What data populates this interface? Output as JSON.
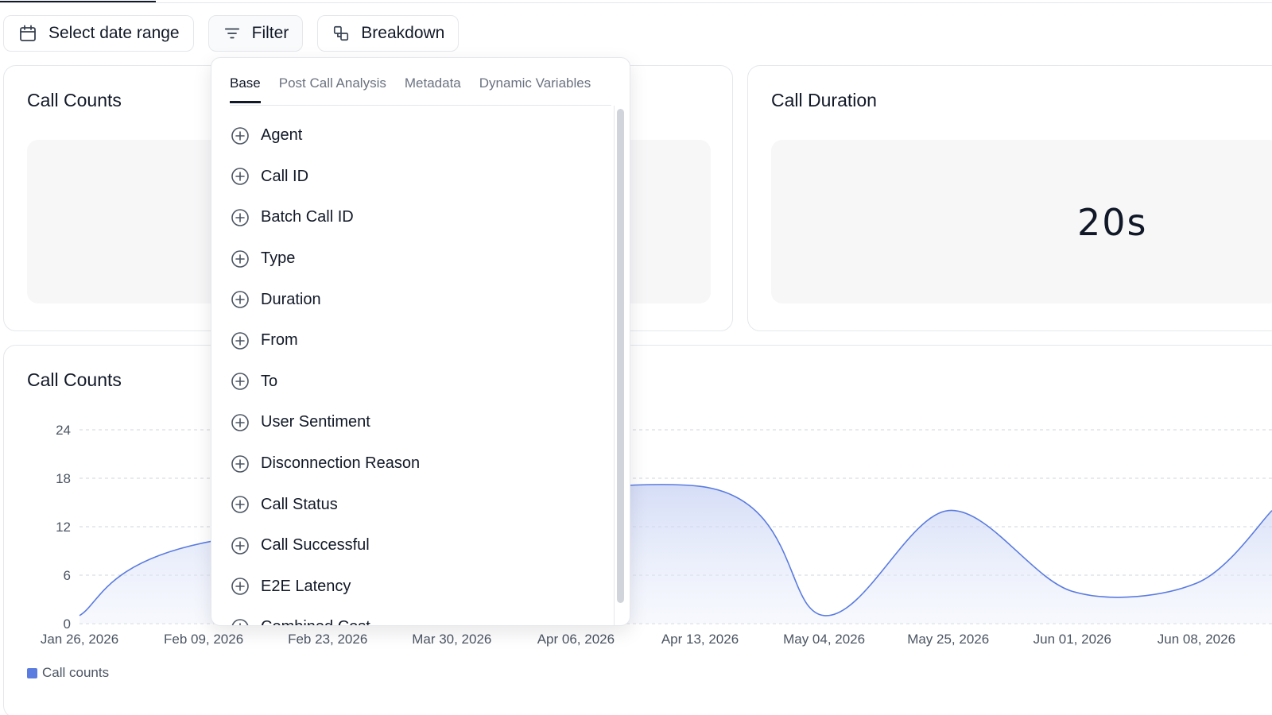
{
  "toolbar": {
    "date_range_label": "Select date range",
    "filter_label": "Filter",
    "breakdown_label": "Breakdown"
  },
  "cards": {
    "call_counts_title": "Call Counts",
    "call_duration_title": "Call Duration",
    "call_duration_value": "20s"
  },
  "filter_dropdown": {
    "tabs": [
      "Base",
      "Post Call Analysis",
      "Metadata",
      "Dynamic Variables"
    ],
    "active_tab": "Base",
    "items": [
      "Agent",
      "Call ID",
      "Batch Call ID",
      "Type",
      "Duration",
      "From",
      "To",
      "User Sentiment",
      "Disconnection Reason",
      "Call Status",
      "Call Successful",
      "E2E Latency",
      "Combined Cost"
    ]
  },
  "chart_data": {
    "type": "area",
    "title": "Call Counts",
    "x": [
      "Jan 26, 2026",
      "Feb 09, 2026",
      "Feb 23, 2026",
      "Mar 30, 2026",
      "Apr 06, 2026",
      "Apr 13, 2026",
      "May 04, 2026",
      "May 25, 2026",
      "Jun 01, 2026",
      "Jun 08, 2026"
    ],
    "series": [
      {
        "name": "Call counts",
        "values": [
          1,
          10,
          null,
          null,
          null,
          17,
          1,
          14,
          4,
          5
        ]
      }
    ],
    "y_ticks": [
      0,
      6,
      12,
      18,
      24
    ],
    "ylim": [
      0,
      24
    ],
    "grid": true,
    "legend": "bottom-left",
    "color": "#5a7be0"
  }
}
